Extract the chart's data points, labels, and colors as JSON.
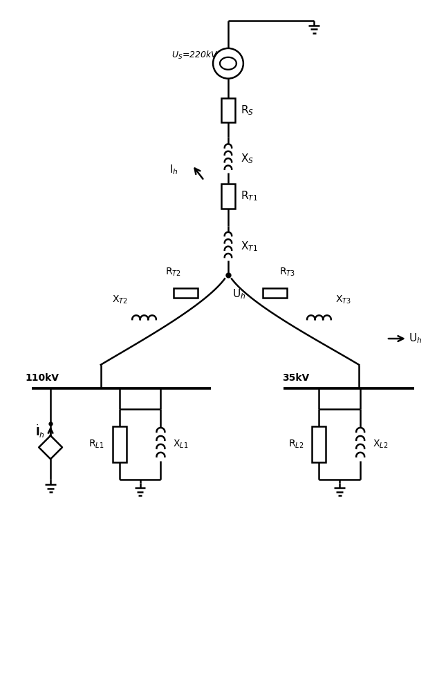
{
  "bg_color": "#ffffff",
  "line_color": "#000000",
  "line_width": 1.8,
  "fig_width": 6.45,
  "fig_height": 10.0,
  "labels": {
    "Us": "U$_S$=220kV",
    "Rs": "R$_S$",
    "Xs": "X$_S$",
    "RT1": "R$_{T1}$",
    "XT1": "X$_{T1}$",
    "RT2": "R$_{T2}$",
    "XT2": "X$_{T2}$",
    "RT3": "R$_{T3}$",
    "XT3": "X$_{T3}$",
    "Uh": "U$_h$",
    "Ih_top": "I$_h$",
    "RL1": "R$_{L1}$",
    "XL1": "X$_{L1}$",
    "RL2": "R$_{L2}$",
    "XL2": "X$_{L2}$",
    "110kV": "110kV",
    "35kV": "35kV",
    "Ih_bot": "$\\dot{\\mathbf{I}}_h$"
  }
}
